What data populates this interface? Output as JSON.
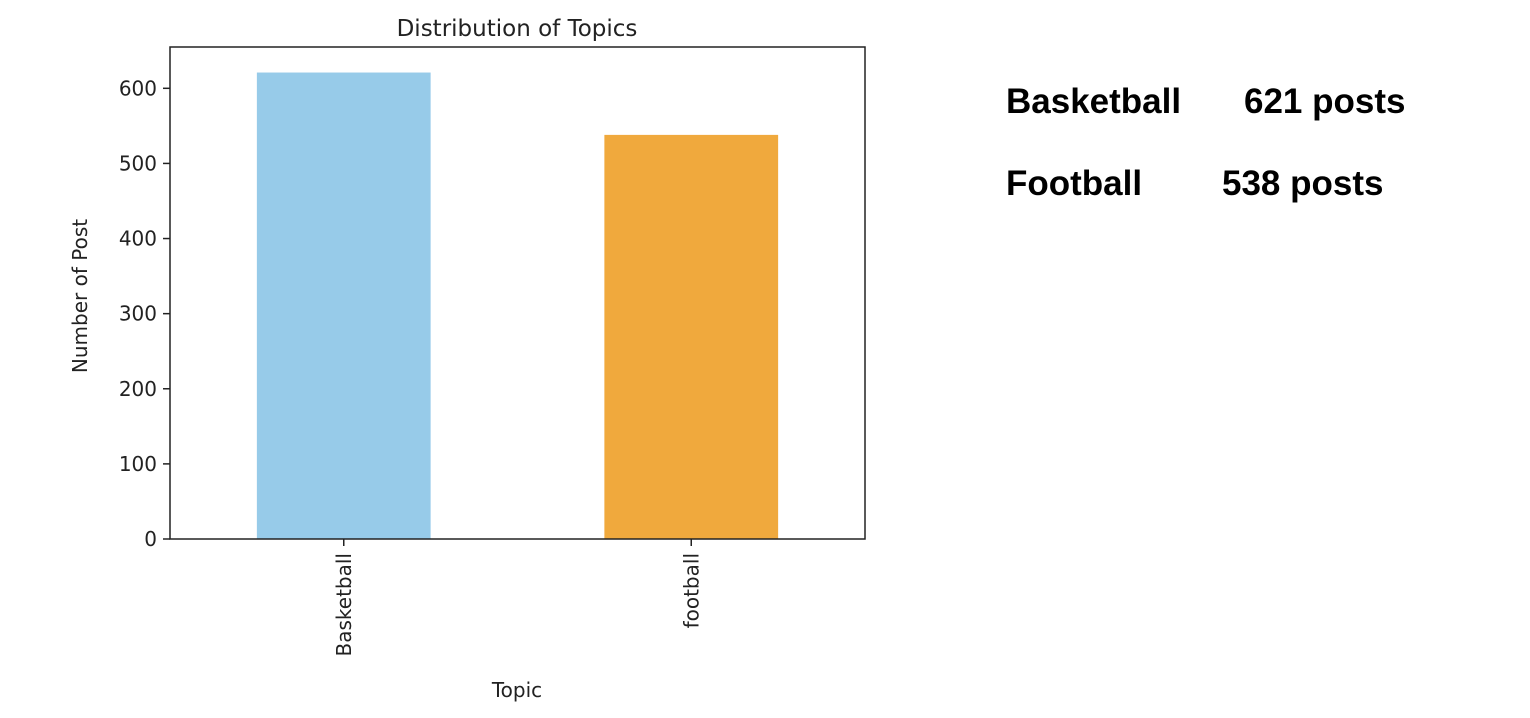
{
  "chart_data": {
    "type": "bar",
    "title": "Distribution of Topics",
    "xlabel": "Topic",
    "ylabel": "Number of Post",
    "categories": [
      "Basketball",
      "football"
    ],
    "values": [
      621,
      538
    ],
    "colors": [
      "#97cbe9",
      "#f0a93d"
    ],
    "ylim": [
      0,
      655
    ],
    "yticks": [
      0,
      100,
      200,
      300,
      400,
      500,
      600
    ],
    "grid": false,
    "legend": "none"
  },
  "summary": {
    "rows": [
      {
        "label": "Basketball",
        "value": "621 posts"
      },
      {
        "label": "Football",
        "value": "538 posts"
      }
    ]
  }
}
